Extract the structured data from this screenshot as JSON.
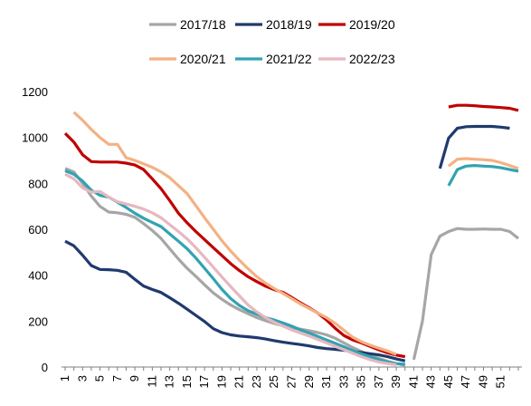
{
  "chart_data": {
    "type": "line",
    "title": "",
    "xlabel": "",
    "ylabel": "",
    "ylim": [
      0,
      1200
    ],
    "yticks": [
      0,
      200,
      400,
      600,
      800,
      1000,
      1200
    ],
    "xticks": [
      1,
      3,
      5,
      7,
      9,
      11,
      13,
      15,
      17,
      19,
      21,
      23,
      25,
      27,
      29,
      31,
      33,
      35,
      37,
      39,
      41,
      43,
      45,
      47,
      49,
      51
    ],
    "xlim": [
      1,
      53
    ],
    "grid": false,
    "legend_position": "top",
    "series": [
      {
        "name": "2017/18",
        "color": "#a6a6a6",
        "points": [
          [
            1,
            865
          ],
          [
            2,
            850
          ],
          [
            3,
            800
          ],
          [
            4,
            745
          ],
          [
            5,
            700
          ],
          [
            6,
            675
          ],
          [
            7,
            672
          ],
          [
            8,
            665
          ],
          [
            9,
            652
          ],
          [
            10,
            625
          ],
          [
            11,
            595
          ],
          [
            12,
            560
          ],
          [
            13,
            515
          ],
          [
            14,
            470
          ],
          [
            15,
            430
          ],
          [
            16,
            395
          ],
          [
            17,
            358
          ],
          [
            18,
            323
          ],
          [
            19,
            295
          ],
          [
            20,
            270
          ],
          [
            21,
            250
          ],
          [
            22,
            232
          ],
          [
            23,
            215
          ],
          [
            24,
            202
          ],
          [
            25,
            190
          ],
          [
            26,
            180
          ],
          [
            27,
            172
          ],
          [
            28,
            165
          ],
          [
            29,
            158
          ],
          [
            30,
            150
          ],
          [
            31,
            140
          ],
          [
            32,
            125
          ],
          [
            33,
            105
          ],
          [
            34,
            85
          ],
          [
            35,
            68
          ],
          [
            36,
            52
          ],
          [
            37,
            38
          ],
          [
            38,
            25
          ],
          [
            39,
            15
          ],
          [
            40,
            8
          ],
          null,
          [
            41,
            32
          ],
          [
            42,
            200
          ],
          [
            43,
            490
          ],
          [
            44,
            570
          ],
          [
            45,
            590
          ],
          [
            46,
            603
          ],
          [
            47,
            600
          ],
          [
            48,
            600
          ],
          [
            49,
            601
          ],
          [
            50,
            600
          ],
          [
            51,
            600
          ],
          [
            52,
            590
          ],
          [
            53,
            560
          ]
        ]
      },
      {
        "name": "2018/19",
        "color": "#1f3a6e",
        "points": [
          [
            1,
            548
          ],
          [
            2,
            528
          ],
          [
            3,
            487
          ],
          [
            4,
            442
          ],
          [
            5,
            425
          ],
          [
            6,
            424
          ],
          [
            7,
            421
          ],
          [
            8,
            413
          ],
          [
            9,
            382
          ],
          [
            10,
            353
          ],
          [
            11,
            338
          ],
          [
            12,
            325
          ],
          [
            13,
            302
          ],
          [
            14,
            278
          ],
          [
            15,
            252
          ],
          [
            16,
            225
          ],
          [
            17,
            198
          ],
          [
            18,
            167
          ],
          [
            19,
            150
          ],
          [
            20,
            140
          ],
          [
            21,
            135
          ],
          [
            22,
            132
          ],
          [
            23,
            128
          ],
          [
            24,
            122
          ],
          [
            25,
            115
          ],
          [
            26,
            108
          ],
          [
            27,
            103
          ],
          [
            28,
            98
          ],
          [
            29,
            92
          ],
          [
            30,
            85
          ],
          [
            31,
            80
          ],
          [
            32,
            77
          ],
          [
            33,
            73
          ],
          [
            34,
            68
          ],
          [
            35,
            63
          ],
          [
            36,
            58
          ],
          [
            37,
            53
          ],
          [
            38,
            45
          ],
          [
            39,
            35
          ],
          [
            40,
            27
          ],
          null,
          [
            44,
            865
          ],
          [
            45,
            997
          ],
          [
            46,
            1040
          ],
          [
            47,
            1047
          ],
          [
            48,
            1048
          ],
          [
            49,
            1048
          ],
          [
            50,
            1048
          ],
          [
            51,
            1045
          ],
          [
            52,
            1040
          ]
        ]
      },
      {
        "name": "2019/20",
        "color": "#c00000",
        "points": [
          [
            1,
            1018
          ],
          [
            2,
            980
          ],
          [
            3,
            925
          ],
          [
            4,
            895
          ],
          [
            5,
            893
          ],
          [
            6,
            893
          ],
          [
            7,
            893
          ],
          [
            8,
            888
          ],
          [
            9,
            880
          ],
          [
            10,
            860
          ],
          [
            11,
            820
          ],
          [
            12,
            777
          ],
          [
            13,
            725
          ],
          [
            14,
            670
          ],
          [
            15,
            628
          ],
          [
            16,
            590
          ],
          [
            17,
            555
          ],
          [
            18,
            520
          ],
          [
            19,
            485
          ],
          [
            20,
            450
          ],
          [
            21,
            420
          ],
          [
            22,
            393
          ],
          [
            23,
            372
          ],
          [
            24,
            352
          ],
          [
            25,
            337
          ],
          [
            26,
            325
          ],
          [
            27,
            303
          ],
          [
            28,
            280
          ],
          [
            29,
            258
          ],
          [
            30,
            235
          ],
          [
            31,
            205
          ],
          [
            32,
            168
          ],
          [
            33,
            137
          ],
          [
            34,
            118
          ],
          [
            35,
            105
          ],
          [
            36,
            90
          ],
          [
            37,
            75
          ],
          [
            38,
            62
          ],
          [
            39,
            52
          ],
          [
            40,
            45
          ],
          null,
          [
            45,
            1133
          ],
          [
            46,
            1140
          ],
          [
            47,
            1140
          ],
          [
            48,
            1138
          ],
          [
            49,
            1135
          ],
          [
            50,
            1133
          ],
          [
            51,
            1130
          ],
          [
            52,
            1127
          ],
          [
            53,
            1118
          ]
        ]
      },
      {
        "name": "2020/21",
        "color": "#f4b183",
        "points": [
          [
            2,
            1110
          ],
          [
            3,
            1075
          ],
          [
            4,
            1035
          ],
          [
            5,
            1000
          ],
          [
            6,
            970
          ],
          [
            7,
            970
          ],
          [
            8,
            912
          ],
          [
            9,
            900
          ],
          [
            10,
            885
          ],
          [
            11,
            870
          ],
          [
            12,
            850
          ],
          [
            13,
            825
          ],
          [
            14,
            790
          ],
          [
            15,
            755
          ],
          [
            16,
            703
          ],
          [
            17,
            650
          ],
          [
            18,
            600
          ],
          [
            19,
            550
          ],
          [
            20,
            505
          ],
          [
            21,
            465
          ],
          [
            22,
            428
          ],
          [
            23,
            393
          ],
          [
            24,
            365
          ],
          [
            25,
            342
          ],
          [
            26,
            320
          ],
          [
            27,
            298
          ],
          [
            28,
            275
          ],
          [
            29,
            255
          ],
          [
            30,
            235
          ],
          [
            31,
            215
          ],
          [
            32,
            190
          ],
          [
            33,
            160
          ],
          [
            34,
            130
          ],
          [
            35,
            110
          ],
          [
            36,
            95
          ],
          [
            37,
            82
          ],
          [
            38,
            70
          ],
          [
            39,
            55
          ],
          null,
          [
            45,
            875
          ],
          [
            46,
            905
          ],
          [
            47,
            908
          ],
          [
            48,
            905
          ],
          [
            49,
            903
          ],
          [
            50,
            900
          ],
          [
            51,
            890
          ],
          [
            52,
            878
          ],
          [
            53,
            865
          ]
        ]
      },
      {
        "name": "2021/22",
        "color": "#31a3b1",
        "points": [
          [
            1,
            855
          ],
          [
            2,
            840
          ],
          [
            3,
            810
          ],
          [
            4,
            770
          ],
          [
            5,
            748
          ],
          [
            6,
            740
          ],
          [
            7,
            718
          ],
          [
            8,
            695
          ],
          [
            9,
            670
          ],
          [
            10,
            648
          ],
          [
            11,
            630
          ],
          [
            12,
            612
          ],
          [
            13,
            580
          ],
          [
            14,
            548
          ],
          [
            15,
            515
          ],
          [
            16,
            475
          ],
          [
            17,
            430
          ],
          [
            18,
            385
          ],
          [
            19,
            338
          ],
          [
            20,
            298
          ],
          [
            21,
            268
          ],
          [
            22,
            245
          ],
          [
            23,
            230
          ],
          [
            24,
            215
          ],
          [
            25,
            205
          ],
          [
            26,
            192
          ],
          [
            27,
            178
          ],
          [
            28,
            162
          ],
          [
            29,
            148
          ],
          [
            30,
            133
          ],
          [
            31,
            118
          ],
          [
            32,
            103
          ],
          [
            33,
            88
          ],
          [
            34,
            72
          ],
          [
            35,
            57
          ],
          [
            36,
            45
          ],
          [
            37,
            32
          ],
          [
            38,
            22
          ],
          [
            39,
            15
          ],
          [
            40,
            12
          ],
          null,
          [
            45,
            790
          ],
          [
            46,
            860
          ],
          [
            47,
            875
          ],
          [
            48,
            878
          ],
          [
            49,
            875
          ],
          [
            50,
            873
          ],
          [
            51,
            868
          ],
          [
            52,
            860
          ],
          [
            53,
            853
          ]
        ]
      },
      {
        "name": "2022/23",
        "color": "#e6b8c0",
        "points": [
          [
            1,
            840
          ],
          [
            2,
            820
          ],
          [
            3,
            780
          ],
          [
            4,
            762
          ],
          [
            5,
            765
          ],
          [
            6,
            740
          ],
          [
            7,
            720
          ],
          [
            8,
            710
          ],
          [
            9,
            700
          ],
          [
            10,
            688
          ],
          [
            11,
            672
          ],
          [
            12,
            650
          ],
          [
            13,
            620
          ],
          [
            14,
            590
          ],
          [
            15,
            558
          ],
          [
            16,
            520
          ],
          [
            17,
            478
          ],
          [
            18,
            435
          ],
          [
            19,
            392
          ],
          [
            20,
            350
          ],
          [
            21,
            310
          ],
          [
            22,
            270
          ],
          [
            23,
            240
          ],
          [
            24,
            215
          ],
          [
            25,
            195
          ],
          [
            26,
            178
          ],
          [
            27,
            162
          ],
          [
            28,
            148
          ],
          [
            29,
            135
          ],
          [
            30,
            120
          ],
          [
            31,
            105
          ],
          [
            32,
            90
          ],
          [
            33,
            75
          ],
          [
            34,
            60
          ],
          [
            35,
            45
          ],
          [
            36,
            32
          ],
          [
            37,
            22
          ],
          [
            38,
            15
          ],
          [
            39,
            10
          ]
        ]
      }
    ]
  }
}
